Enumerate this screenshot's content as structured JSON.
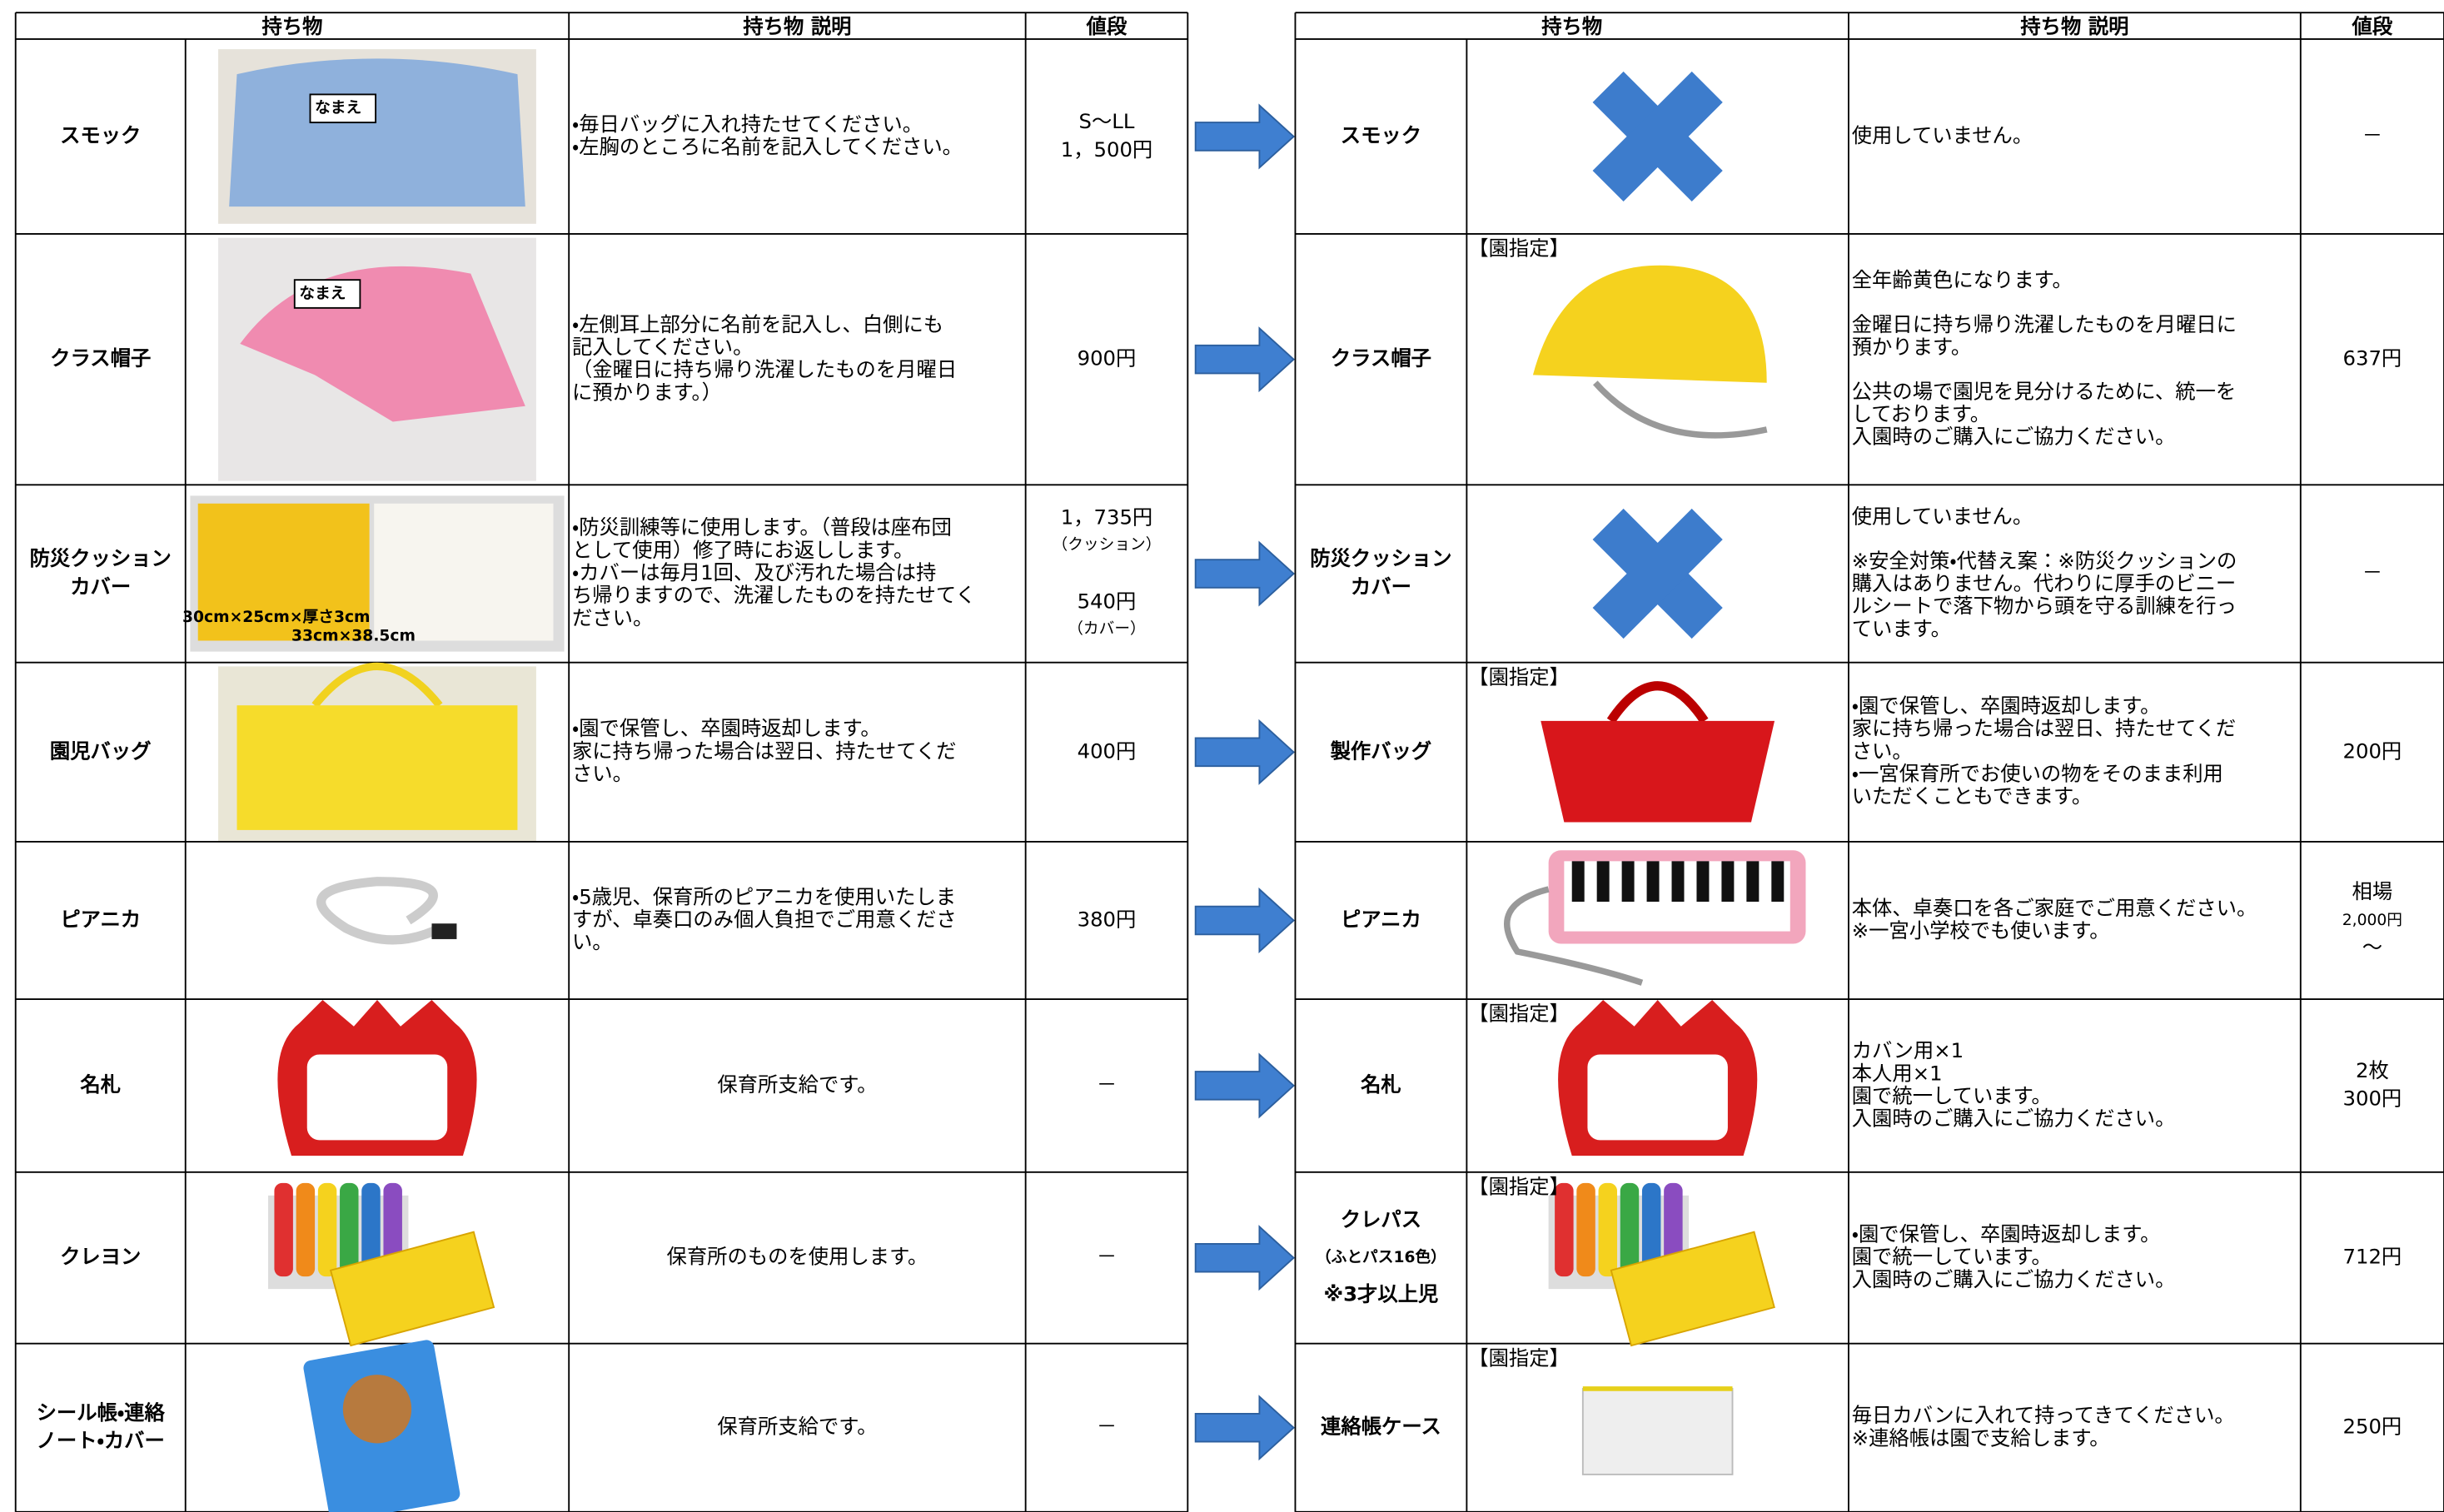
{
  "left": {
    "header": [
      "持ち物",
      "持ち物 説明",
      "値段"
    ],
    "rows": [
      {
        "item": [
          "スモック"
        ],
        "image_labels": [
          "なまえ"
        ],
        "description": [
          [
            "・毎日バッグに入れ持たせてください。",
            "・左胸のところに名前を記入してください。"
          ]
        ],
        "price": [
          "S～LL",
          "1，500円"
        ]
      },
      {
        "item": [
          "クラス帽子"
        ],
        "image_labels": [
          "なまえ"
        ],
        "description": [
          [
            "・左側耳上部分に名前を記入し、白側にも",
            "記入してください。",
            "（金曜日に持ち帰り洗濯したものを月曜日",
            "に預かります。）"
          ]
        ],
        "price": [
          "900円"
        ]
      },
      {
        "item": [
          "防災クッション",
          "カバー"
        ],
        "image_labels": [
          "30cm×25cm×厚さ3cm",
          "33cm×38.5cm"
        ],
        "description": [
          [
            "・防災訓練等に使用します。（普段は座布団",
            "として使用）修了時にお返しします。",
            "・カバーは毎月1回、及び汚れた場合は持",
            "ち帰りますので、洗濯したものを持たせてく",
            "ださい。"
          ]
        ],
        "price": [
          "1，735円",
          "（クッション）",
          "540円",
          "（カバー）"
        ]
      },
      {
        "item": [
          "園児バッグ"
        ],
        "description": [
          [
            "・園で保管し、卒園時返却します。",
            "家に持ち帰った場合は翌日、持たせてくだ",
            "さい。"
          ]
        ],
        "price": [
          "400円"
        ]
      },
      {
        "item": [
          "ピアニカ"
        ],
        "description": [
          [
            "・5歳児、保育所のピアニカを使用いたしま",
            "すが、卓奏口のみ個人負担でご用意くださ",
            "い。"
          ]
        ],
        "price": [
          "380円"
        ]
      },
      {
        "item": [
          "名札"
        ],
        "description": [
          [
            "保育所支給です。"
          ]
        ],
        "price": [
          "－"
        ]
      },
      {
        "item": [
          "クレヨン"
        ],
        "description": [
          [
            "保育所のものを使用します。"
          ]
        ],
        "price": [
          "－"
        ]
      },
      {
        "item": [
          "シール帳・連絡",
          "ノート・カバー"
        ],
        "description": [
          [
            "保育所支給です。"
          ]
        ],
        "price": [
          "－"
        ]
      }
    ]
  },
  "right": {
    "header": [
      "持ち物",
      "持ち物 説明",
      "値段"
    ],
    "rows": [
      {
        "item": [
          "スモック"
        ],
        "description": [
          [
            "使用していません。"
          ]
        ],
        "price": [
          "－"
        ]
      },
      {
        "item": [
          "クラス帽子"
        ],
        "tag": "【園指定】",
        "description": [
          [
            "全年齢黄色になります。"
          ],
          [
            "金曜日に持ち帰り洗濯したものを月曜日に",
            "預かります。"
          ],
          [
            "公共の場で園児を見分けるために、統一を",
            "しております。",
            "入園時のご購入にご協力ください。"
          ]
        ],
        "price": [
          "637円"
        ]
      },
      {
        "item": [
          "防災クッション",
          "カバー"
        ],
        "description": [
          [
            "使用していません。"
          ],
          [
            "※安全対策・代替え案：※防災クッションの",
            "購入はありません。代わりに厚手のビニー",
            "ルシートで落下物から頭を守る訓練を行っ",
            "ています。"
          ]
        ],
        "price": [
          "－"
        ]
      },
      {
        "item": [
          "製作バッグ"
        ],
        "tag": "【園指定】",
        "description": [
          [
            "・園で保管し、卒園時返却します。",
            "家に持ち帰った場合は翌日、持たせてくだ",
            "さい。",
            "・一宮保育所でお使いの物をそのまま利用",
            "いただくこともできます。"
          ]
        ],
        "price": [
          "200円"
        ]
      },
      {
        "item": [
          "ピアニカ"
        ],
        "description": [
          [
            "本体、卓奏口を各ご家庭でご用意ください。",
            "※一宮小学校でも使います。"
          ]
        ],
        "price": [
          "相場",
          "2,000円",
          "～"
        ]
      },
      {
        "item": [
          "名札"
        ],
        "tag": "【園指定】",
        "description": [
          [
            "カバン用×1",
            "本人用×1",
            "園で統一しています。",
            "入園時のご購入にご協力ください。"
          ]
        ],
        "price": [
          "2枚",
          "300円"
        ]
      },
      {
        "item": [
          "クレパス",
          "（ふとパス16色）",
          "※3才以上児"
        ],
        "tag": "【園指定】",
        "description": [
          [
            "・園で保管し、卒園時返却します。",
            "園で統一しています。",
            "入園時のご購入にご協力ください。"
          ]
        ],
        "price": [
          "712円"
        ]
      },
      {
        "item": [
          "連絡帳ケース"
        ],
        "tag": "【園指定】",
        "description": [
          [
            "毎日カバンに入れて持ってきてください。",
            "※連絡帳は園で支給します。"
          ]
        ],
        "price": [
          "250円"
        ]
      }
    ]
  }
}
